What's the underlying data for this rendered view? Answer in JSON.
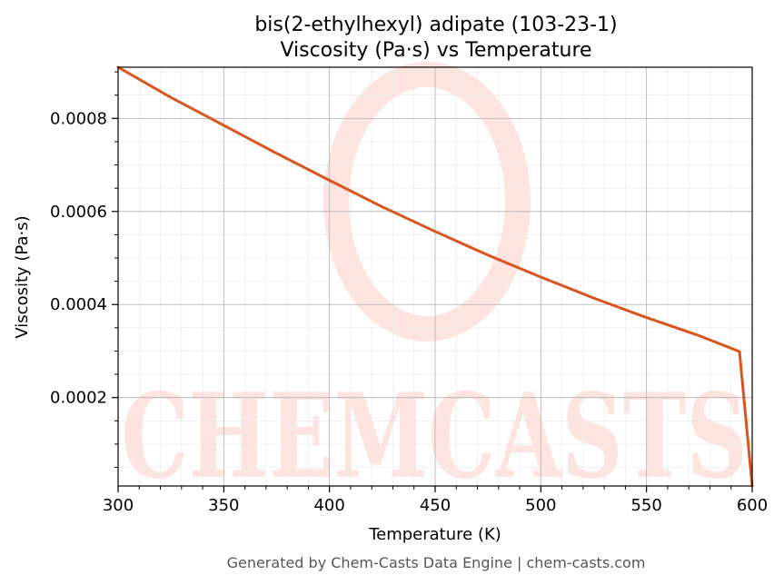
{
  "chart_data": {
    "type": "line",
    "title_line1": "bis(2-ethylhexyl) adipate (103-23-1)",
    "title_line2": "Viscosity (Pa·s) vs Temperature",
    "xlabel": "Temperature (K)",
    "ylabel": "Viscosity (Pa·s)",
    "xlim": [
      300,
      600
    ],
    "ylim": [
      1e-05,
      0.00091
    ],
    "xticks": [
      300,
      350,
      400,
      450,
      500,
      550,
      600
    ],
    "yticks": [
      0.0002,
      0.0004,
      0.0006,
      0.0008
    ],
    "ytick_labels": [
      "0.0002",
      "0.0004",
      "0.0006",
      "0.0008"
    ],
    "grid": true,
    "series": [
      {
        "color": "#d9541e",
        "x": [
          300,
          325,
          350,
          375,
          400,
          425,
          450,
          475,
          500,
          525,
          550,
          575,
          594,
          600
        ],
        "y": [
          0.00091,
          0.000845,
          0.000785,
          0.000725,
          0.000667,
          0.00061,
          0.000557,
          0.000506,
          0.000459,
          0.000414,
          0.000372,
          0.000333,
          0.000299,
          1e-05
        ]
      }
    ]
  },
  "watermark": {
    "text": "CHEMCASTS",
    "color": "#fde4df"
  },
  "footer": "Generated by Chem-Casts Data Engine | chem-casts.com"
}
